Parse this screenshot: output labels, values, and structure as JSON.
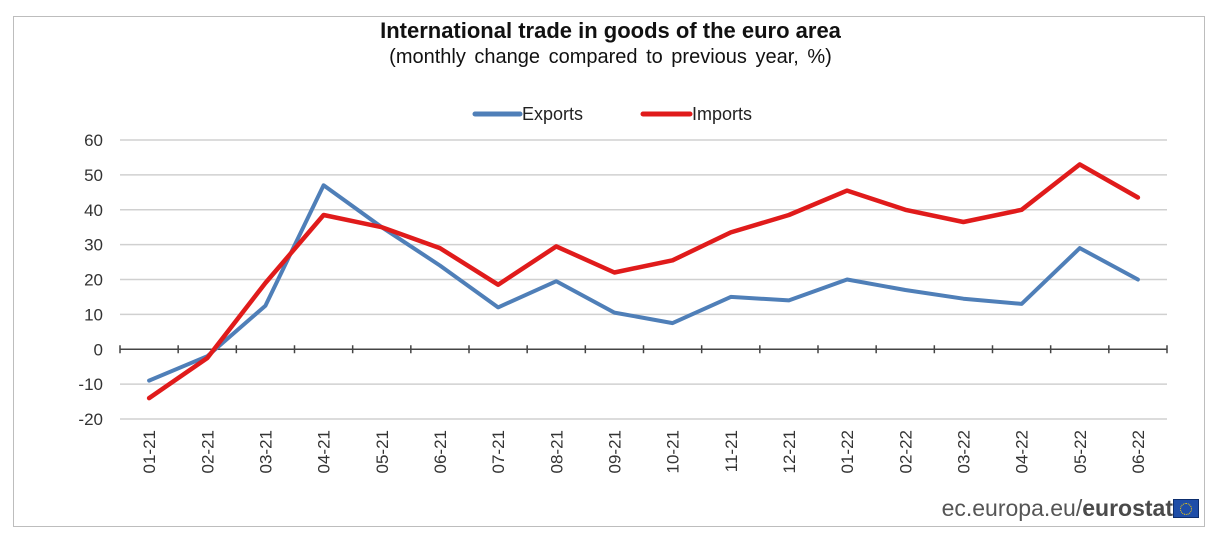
{
  "chart_data": {
    "type": "line",
    "title": "International trade in goods of the euro area",
    "subtitle": "(monthly change compared to previous year, %)",
    "categories": [
      "01-21",
      "02-21",
      "03-21",
      "04-21",
      "05-21",
      "06-21",
      "07-21",
      "08-21",
      "09-21",
      "10-21",
      "11-21",
      "12-21",
      "01-22",
      "02-22",
      "03-22",
      "04-22",
      "05-22",
      "06-22"
    ],
    "series": [
      {
        "name": "Exports",
        "color": "#4f7fb8",
        "values": [
          -9,
          -2,
          12.5,
          47,
          35,
          24,
          12,
          19.5,
          10.5,
          7.5,
          15,
          14,
          20,
          17,
          14.5,
          13,
          29,
          20
        ]
      },
      {
        "name": "Imports",
        "color": "#e01b1b",
        "values": [
          -14,
          -2.5,
          19,
          38.5,
          35,
          29,
          18.5,
          29.5,
          22,
          25.5,
          33.5,
          38.5,
          45.5,
          40,
          36.5,
          40,
          53,
          43.5
        ]
      }
    ],
    "ylim": [
      -20,
      60
    ],
    "yticks": [
      -20,
      -10,
      0,
      10,
      20,
      30,
      40,
      50,
      60
    ],
    "grid": true,
    "legend_position": "top-center",
    "xlabel": "",
    "ylabel": ""
  },
  "footer": {
    "source_site": "ec.europa.eu/",
    "source_brand": "eurostat"
  },
  "logo": {
    "name": "eu-flag-icon"
  }
}
